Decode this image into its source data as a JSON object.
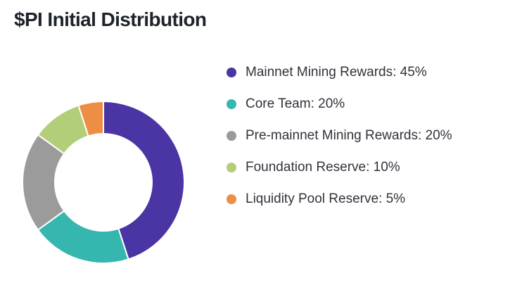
{
  "page": {
    "title": "$PI Initial Distribution"
  },
  "chart_data": {
    "type": "pie",
    "subtype": "donut",
    "title": "$PI Initial Distribution",
    "legend_position": "right",
    "start_angle_deg": -90,
    "direction": "clockwise",
    "donut_hole_ratio": 0.6,
    "series": [
      {
        "name": "Mainnet Mining Rewards",
        "value": 45,
        "color": "#4b34a3"
      },
      {
        "name": "Core Team",
        "value": 20,
        "color": "#35b6ae"
      },
      {
        "name": "Pre-mainnet Mining Rewards",
        "value": 20,
        "color": "#9b9b9b"
      },
      {
        "name": "Foundation Reserve",
        "value": 10,
        "color": "#b3ce79"
      },
      {
        "name": "Liquidity Pool Reserve",
        "value": 5,
        "color": "#ee8e44"
      }
    ]
  },
  "legend": {
    "items": [
      {
        "label": "Mainnet Mining Rewards: 45%"
      },
      {
        "label": "Core Team: 20%"
      },
      {
        "label": "Pre-mainnet Mining Rewards: 20%"
      },
      {
        "label": "Foundation Reserve: 10%"
      },
      {
        "label": "Liquidity Pool Reserve: 5%"
      }
    ]
  },
  "colors": {
    "background": "#ffffff",
    "title_text": "#1e222b",
    "legend_text": "#2f333a",
    "segment_gap": "#ffffff"
  }
}
